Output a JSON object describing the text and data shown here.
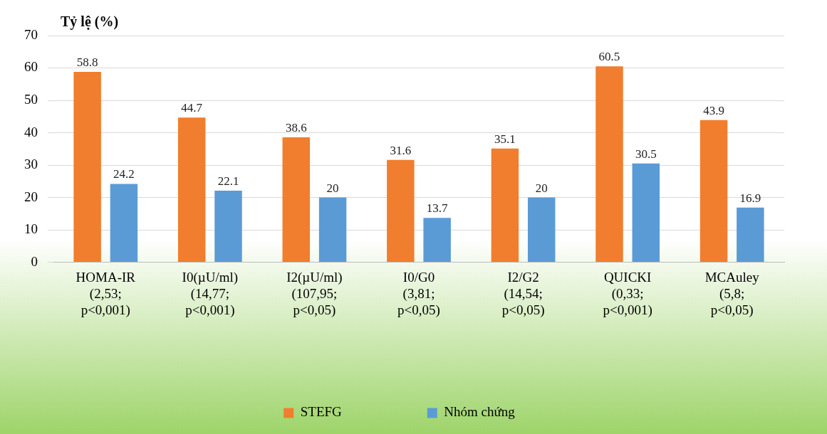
{
  "chart_data": {
    "type": "bar",
    "ylabel": "Tỷ lệ (%)",
    "categories": [
      "HOMA-IR\n(2,53;\np<0,001)",
      "I0(µU/ml)\n(14,77;\np<0,001)",
      "I2(µU/ml)\n(107,95;\np<0,05)",
      "I0/G0\n(3,81;\np<0,05)",
      "I2/G2\n(14,54;\np<0,05)",
      "QUICKI\n(0,33;\np<0,001)",
      "MCAuley\n(5,8;\np<0,05)"
    ],
    "series": [
      {
        "name": "STEFG",
        "color": "#f07e2e",
        "values": [
          58.8,
          44.7,
          38.6,
          31.6,
          35.1,
          60.5,
          43.9
        ]
      },
      {
        "name": "Nhóm chứng",
        "color": "#5b9bd5",
        "values": [
          24.2,
          22.1,
          20,
          13.7,
          20,
          30.5,
          16.9
        ]
      }
    ],
    "ylim": [
      0,
      70
    ],
    "yticks": [
      0,
      10,
      20,
      30,
      40,
      50,
      60,
      70
    ],
    "grid": "y",
    "legend": "bottom",
    "data_labels": true
  }
}
